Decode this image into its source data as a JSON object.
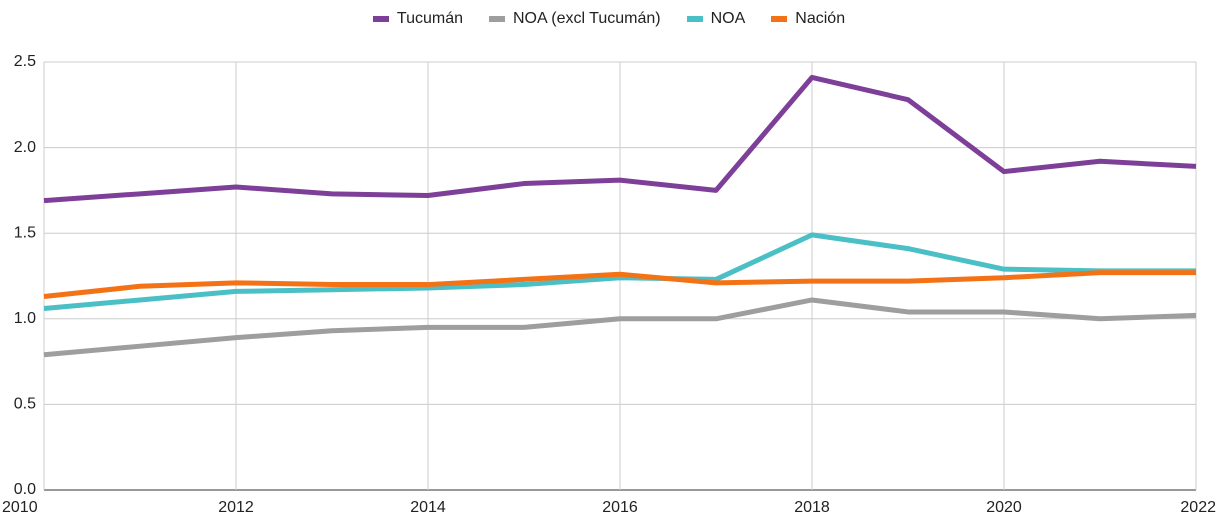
{
  "chart_data": {
    "type": "line",
    "x": [
      2010,
      2011,
      2012,
      2013,
      2014,
      2015,
      2016,
      2017,
      2018,
      2019,
      2020,
      2021,
      2022
    ],
    "series": [
      {
        "name": "Tucumán",
        "color": "#7e3f98",
        "values": [
          1.69,
          1.73,
          1.77,
          1.73,
          1.72,
          1.79,
          1.81,
          1.75,
          2.41,
          2.28,
          1.86,
          1.92,
          1.89
        ]
      },
      {
        "name": "NOA (excl Tucumán)",
        "color": "#9e9e9e",
        "values": [
          0.79,
          0.84,
          0.89,
          0.93,
          0.95,
          0.95,
          1.0,
          1.0,
          1.11,
          1.04,
          1.04,
          1.0,
          1.02
        ]
      },
      {
        "name": "NOA",
        "color": "#4bbfc6",
        "values": [
          1.06,
          1.11,
          1.16,
          1.17,
          1.18,
          1.2,
          1.24,
          1.23,
          1.49,
          1.41,
          1.29,
          1.28,
          1.28
        ]
      },
      {
        "name": "Nación",
        "color": "#f47216",
        "values": [
          1.13,
          1.19,
          1.21,
          1.2,
          1.2,
          1.23,
          1.26,
          1.21,
          1.22,
          1.22,
          1.24,
          1.27,
          1.27
        ]
      }
    ],
    "xlim": [
      2010,
      2022
    ],
    "xticks": [
      2010,
      2012,
      2014,
      2016,
      2018,
      2020,
      2022
    ],
    "ylim": [
      0,
      2.5
    ],
    "yticks": [
      {
        "value": 0,
        "label": "0.0"
      },
      0.5,
      {
        "value": 1,
        "label": "1.0"
      },
      1.5,
      {
        "value": 2,
        "label": "2.0"
      },
      2.5
    ],
    "grid": true,
    "legend": "top"
  }
}
